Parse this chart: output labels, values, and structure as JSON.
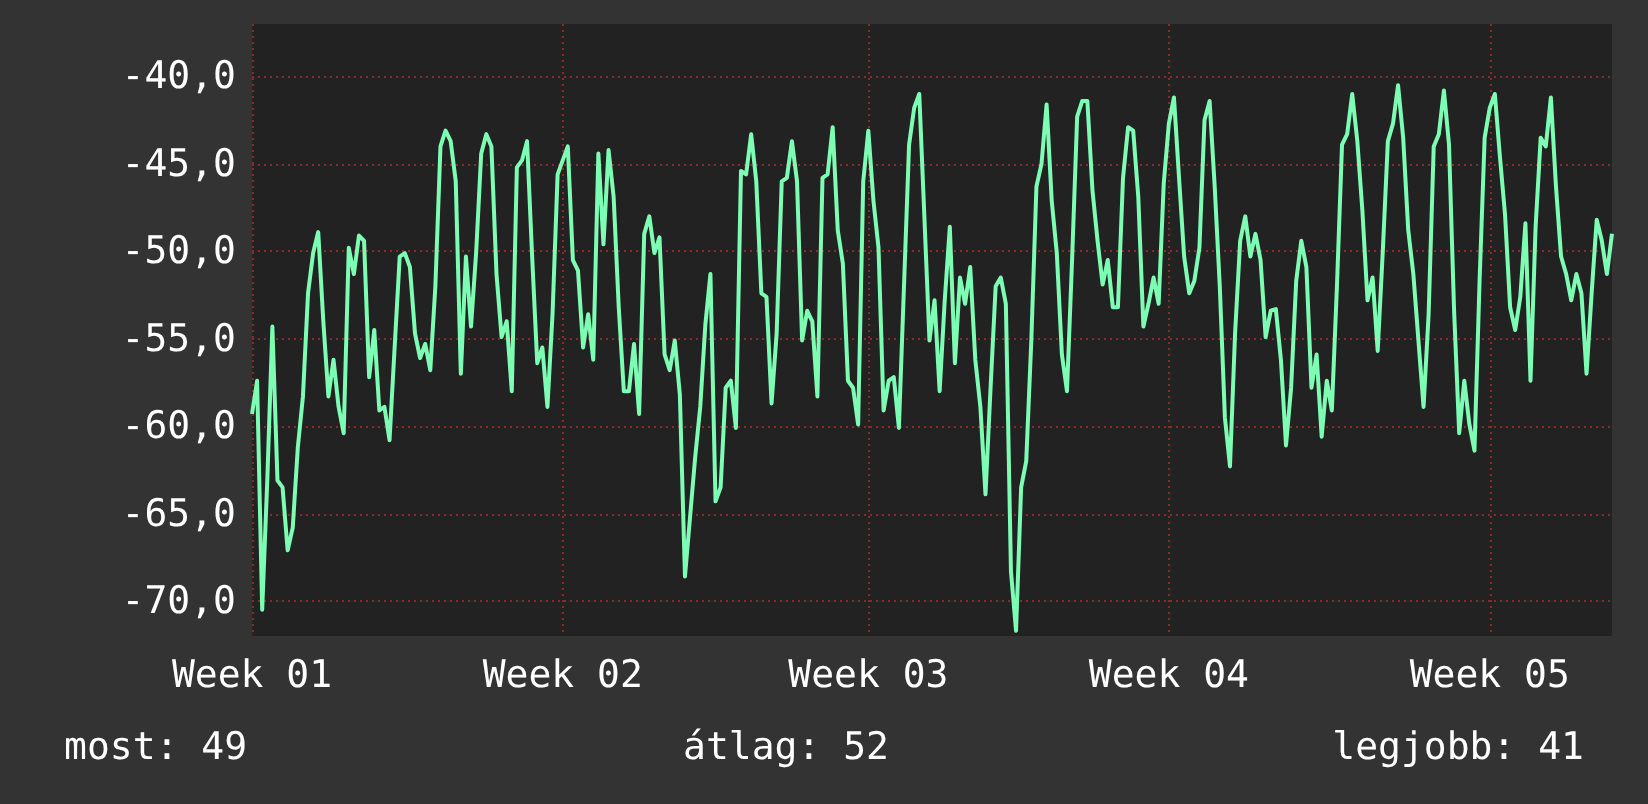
{
  "chart_data": {
    "type": "line",
    "color": "#7dfcb4",
    "grid": true,
    "marker": "none",
    "annotations": [
      "most: 49",
      "átlag: 52",
      "legjobb: 41"
    ],
    "ylim": [
      -72,
      -37
    ],
    "yticks": [
      {
        "value": -40,
        "label": "-40,0"
      },
      {
        "value": -45,
        "label": "-45,0"
      },
      {
        "value": -50,
        "label": "-50,0"
      },
      {
        "value": -55,
        "label": "-55,0"
      },
      {
        "value": -60,
        "label": "-60,0"
      },
      {
        "value": -65,
        "label": "-65,0"
      },
      {
        "value": -70,
        "label": "-70,0"
      }
    ],
    "categories": [
      "Week 01",
      null,
      null,
      null,
      null,
      null,
      null,
      null,
      null,
      null,
      null,
      null,
      null,
      null,
      null,
      null,
      null,
      null,
      null,
      null,
      null,
      null,
      null,
      null,
      null,
      null,
      null,
      null,
      null,
      null,
      null,
      null,
      null,
      null,
      null,
      null,
      null,
      null,
      null,
      null,
      null,
      null,
      null,
      null,
      null,
      null,
      null,
      null,
      null,
      null,
      null,
      null,
      null,
      null,
      null,
      null,
      null,
      null,
      null,
      null,
      null,
      "Week 02",
      null,
      null,
      null,
      null,
      null,
      null,
      null,
      null,
      null,
      null,
      null,
      null,
      null,
      null,
      null,
      null,
      null,
      null,
      null,
      null,
      null,
      null,
      null,
      null,
      null,
      null,
      null,
      null,
      null,
      null,
      null,
      null,
      null,
      null,
      null,
      null,
      null,
      null,
      null,
      null,
      null,
      null,
      null,
      null,
      null,
      null,
      null,
      null,
      null,
      null,
      null,
      null,
      null,
      null,
      null,
      null,
      null,
      null,
      null,
      "Week 03",
      null,
      null,
      null,
      null,
      null,
      null,
      null,
      null,
      null,
      null,
      null,
      null,
      null,
      null,
      null,
      null,
      null,
      null,
      null,
      null,
      null,
      null,
      null,
      null,
      null,
      null,
      null,
      null,
      null,
      null,
      null,
      null,
      null,
      null,
      null,
      null,
      null,
      null,
      null,
      null,
      null,
      null,
      null,
      null,
      null,
      null,
      null,
      null,
      null,
      null,
      null,
      null,
      null,
      null,
      null,
      null,
      null,
      null,
      "Week 04",
      null,
      null,
      null,
      null,
      null,
      null,
      null,
      null,
      null,
      null,
      null,
      null,
      null,
      null,
      null,
      null,
      null,
      null,
      null,
      null,
      null,
      null,
      null,
      null,
      null,
      null,
      null,
      null,
      null,
      null,
      null,
      null,
      null,
      null,
      null,
      null,
      null,
      null,
      null,
      null,
      null,
      null,
      null,
      null,
      null,
      null,
      null,
      null,
      null,
      null,
      null,
      null,
      null,
      null,
      null,
      null,
      null,
      null,
      null,
      null,
      null,
      null,
      "Week 05",
      null,
      null,
      null,
      null,
      null,
      null,
      null,
      null,
      null,
      null,
      null,
      null,
      null,
      null,
      null,
      null,
      null,
      null,
      null,
      null,
      null,
      null,
      null,
      null
    ],
    "values": [
      -59.3,
      -57.4,
      -70.5,
      -63.1,
      -54.3,
      -63.1,
      -63.5,
      -67.1,
      -65.8,
      -61.2,
      -58.3,
      -52.4,
      -50.1,
      -48.9,
      -54.0,
      -58.3,
      -56.2,
      -58.9,
      -60.4,
      -49.8,
      -51.3,
      -49.1,
      -49.4,
      -57.2,
      -54.5,
      -59.1,
      -58.9,
      -60.8,
      -55.5,
      -50.3,
      -50.1,
      -50.9,
      -54.7,
      -56.1,
      -55.3,
      -56.8,
      -52.0,
      -44.0,
      -43.1,
      -43.7,
      -46.0,
      -57.0,
      -50.3,
      -54.3,
      -50.1,
      -44.4,
      -43.3,
      -44.0,
      -51.3,
      -54.9,
      -54.0,
      -58.0,
      -45.2,
      -44.8,
      -43.7,
      -50.3,
      -56.4,
      -55.5,
      -58.9,
      -53.6,
      -45.6,
      -44.8,
      -44.0,
      -50.5,
      -51.1,
      -55.5,
      -53.6,
      -56.2,
      -44.4,
      -49.6,
      -44.2,
      -46.9,
      -53.2,
      -58.0,
      -58.0,
      -55.3,
      -59.3,
      -49.0,
      -48.0,
      -50.1,
      -49.2,
      -55.9,
      -56.8,
      -55.1,
      -58.2,
      -68.6,
      -65.2,
      -61.8,
      -58.9,
      -54.2,
      -51.3,
      -64.3,
      -63.5,
      -57.8,
      -57.4,
      -60.1,
      -45.4,
      -45.6,
      -43.3,
      -46.0,
      -52.4,
      -52.6,
      -58.7,
      -54.7,
      -46.0,
      -45.8,
      -43.7,
      -46.0,
      -55.1,
      -53.4,
      -54.0,
      -58.3,
      -45.8,
      -45.6,
      -42.9,
      -48.8,
      -50.7,
      -57.4,
      -57.8,
      -59.9,
      -46.0,
      -43.1,
      -47.1,
      -49.8,
      -59.1,
      -57.4,
      -57.2,
      -60.1,
      -52.0,
      -43.9,
      -41.8,
      -41.0,
      -48.0,
      -55.1,
      -52.8,
      -58.0,
      -52.8,
      -48.6,
      -56.4,
      -51.5,
      -53.0,
      -50.9,
      -56.2,
      -58.9,
      -63.9,
      -57.8,
      -52.0,
      -51.5,
      -53.0,
      -68.3,
      -71.7,
      -63.5,
      -62.0,
      -55.1,
      -46.3,
      -45.0,
      -41.6,
      -47.1,
      -50.1,
      -55.9,
      -58.0,
      -50.5,
      -42.3,
      -41.4,
      -41.4,
      -46.5,
      -49.4,
      -51.9,
      -50.5,
      -53.2,
      -53.2,
      -45.8,
      -42.9,
      -43.1,
      -46.9,
      -54.3,
      -53.0,
      -51.5,
      -53.0,
      -46.1,
      -42.7,
      -41.2,
      -45.8,
      -50.3,
      -52.4,
      -51.7,
      -49.8,
      -42.5,
      -41.4,
      -46.3,
      -52.0,
      -59.5,
      -62.3,
      -54.7,
      -49.4,
      -48.0,
      -50.3,
      -49.0,
      -50.5,
      -54.9,
      -53.4,
      -53.3,
      -56.2,
      -61.1,
      -57.8,
      -51.7,
      -49.4,
      -50.9,
      -57.8,
      -55.9,
      -60.6,
      -57.4,
      -59.1,
      -52.0,
      -43.9,
      -43.3,
      -41.0,
      -43.7,
      -47.7,
      -52.8,
      -51.5,
      -55.7,
      -50.0,
      -43.7,
      -42.7,
      -40.5,
      -43.5,
      -48.8,
      -51.3,
      -55.1,
      -58.9,
      -53.6,
      -44.0,
      -43.3,
      -40.8,
      -43.9,
      -53.4,
      -60.4,
      -57.4,
      -59.9,
      -61.4,
      -51.7,
      -43.5,
      -41.8,
      -41.0,
      -44.6,
      -47.9,
      -53.2,
      -54.5,
      -52.6,
      -48.4,
      -57.4,
      -48.6,
      -43.5,
      -44.0,
      -41.2,
      -46.3,
      -50.3,
      -51.3,
      -52.8,
      -51.3,
      -52.4,
      -57.0,
      -52.4,
      -48.2,
      -49.4,
      -51.3,
      -49.0
    ]
  }
}
